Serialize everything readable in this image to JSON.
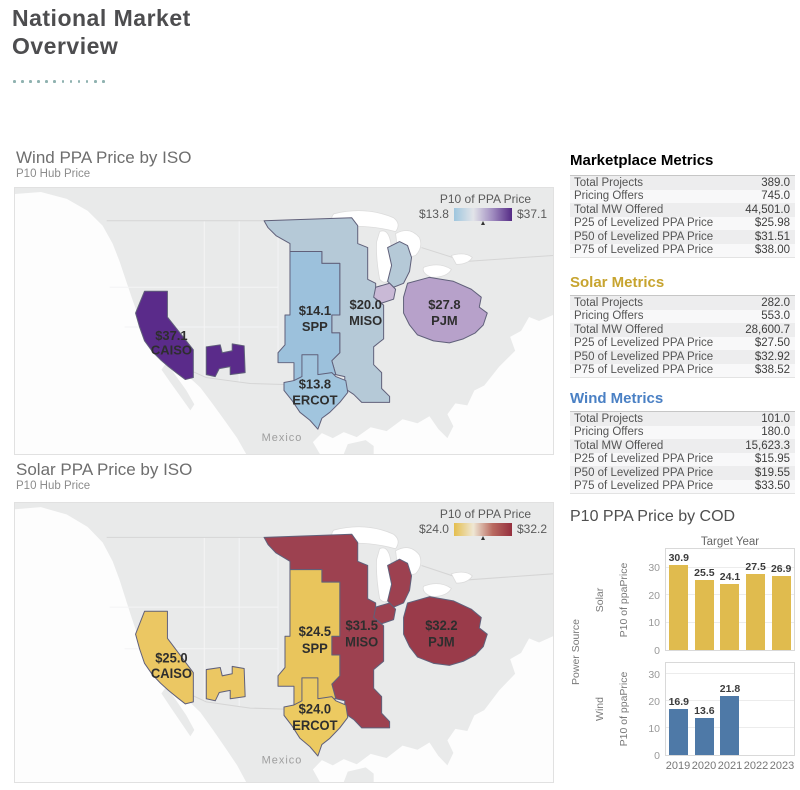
{
  "header": {
    "title_line1": "National Market",
    "title_line2": "Overview"
  },
  "maps": {
    "wind": {
      "title": "Wind PPA Price by ISO",
      "subtitle": "P10 Hub Price",
      "legend": {
        "title": "P10 of PPA Price",
        "min": "$13.8",
        "max": "$37.1",
        "gradient": [
          "#9ec6de",
          "#e2e4e9",
          "#a08cc0",
          "#542a85"
        ]
      },
      "mexico_label": "Mexico",
      "regions": {
        "caiso": {
          "price": "$37.1",
          "name": "CAISO",
          "color": "#5a2b8a"
        },
        "spp": {
          "price": "$14.1",
          "name": "SPP",
          "color": "#9cc1dc"
        },
        "ercot": {
          "price": "$13.8",
          "name": "ERCOT",
          "color": "#a1c5de"
        },
        "miso": {
          "price": "$20.0",
          "name": "MISO",
          "color": "#b5c9d7"
        },
        "pjm": {
          "price": "$27.8",
          "name": "PJM",
          "color": "#b7a1ca"
        },
        "comed": {
          "color": "#c9b9d6"
        }
      }
    },
    "solar": {
      "title": "Solar PPA Price by ISO",
      "subtitle": "P10 Hub Price",
      "legend": {
        "title": "P10 of PPA Price",
        "min": "$24.0",
        "max": "$32.2",
        "gradient": [
          "#e4be4d",
          "#efe7d4",
          "#b96a60",
          "#952f3e"
        ]
      },
      "mexico_label": "Mexico",
      "regions": {
        "caiso": {
          "price": "$25.0",
          "name": "CAISO",
          "color": "#ebc763"
        },
        "spp": {
          "price": "$24.5",
          "name": "SPP",
          "color": "#e9c55c"
        },
        "ercot": {
          "price": "$24.0",
          "name": "ERCOT",
          "color": "#ecca61"
        },
        "miso": {
          "price": "$31.5",
          "name": "MISO",
          "color": "#9d4150"
        },
        "pjm": {
          "price": "$32.2",
          "name": "PJM",
          "color": "#9a3b4a"
        },
        "comed": {
          "color": "#9d4150"
        }
      }
    }
  },
  "metrics": {
    "marketplace": {
      "title": "Marketplace Metrics",
      "title_color": "#3d3d3d",
      "rows": [
        {
          "label": "Total Projects",
          "value": "389.0"
        },
        {
          "label": "Pricing Offers",
          "value": "745.0"
        },
        {
          "label": "Total MW Offered",
          "value": "44,501.0"
        },
        {
          "label": "P25 of Levelized PPA Price",
          "value": "$25.98"
        },
        {
          "label": "P50 of Levelized PPA Price",
          "value": "$31.51"
        },
        {
          "label": "P75 of Levelized PPA Price",
          "value": "$38.00"
        }
      ]
    },
    "solar": {
      "title": "Solar Metrics",
      "title_color": "#c7a42f",
      "rows": [
        {
          "label": "Total Projects",
          "value": "282.0"
        },
        {
          "label": "Pricing Offers",
          "value": "553.0"
        },
        {
          "label": "Total MW Offered",
          "value": "28,600.7"
        },
        {
          "label": "P25 of Levelized PPA Price",
          "value": "$27.50"
        },
        {
          "label": "P50 of Levelized PPA Price",
          "value": "$32.92"
        },
        {
          "label": "P75 of Levelized PPA Price",
          "value": "$38.52"
        }
      ]
    },
    "wind": {
      "title": "Wind Metrics",
      "title_color": "#4a80c4",
      "rows": [
        {
          "label": "Total Projects",
          "value": "101.0"
        },
        {
          "label": "Pricing Offers",
          "value": "180.0"
        },
        {
          "label": "Total MW Offered",
          "value": "15,623.3"
        },
        {
          "label": "P25 of Levelized PPA Price",
          "value": "$15.95"
        },
        {
          "label": "P50 of Levelized PPA Price",
          "value": "$19.55"
        },
        {
          "label": "P75 of Levelized PPA Price",
          "value": "$33.50"
        }
      ]
    }
  },
  "cod_chart": {
    "title": "P10 PPA Price by COD",
    "col_facet_label": "Target Year",
    "row_facet_label": "Power Source",
    "solar_label": "Solar",
    "wind_label": "Wind",
    "y_axis_label": "P10 of ppaPrice",
    "yticks": [
      "30",
      "20",
      "10",
      "0"
    ]
  },
  "chart_data": [
    {
      "type": "heatmap",
      "subtype": "choropleth-map",
      "title": "Wind PPA Price by ISO",
      "subtitle": "P10 Hub Price",
      "legend_title": "P10 of PPA Price",
      "scale_min": 13.8,
      "scale_max": 37.1,
      "regions": [
        {
          "iso": "CAISO",
          "value": 37.1
        },
        {
          "iso": "SPP",
          "value": 14.1
        },
        {
          "iso": "ERCOT",
          "value": 13.8
        },
        {
          "iso": "MISO",
          "value": 20.0
        },
        {
          "iso": "PJM",
          "value": 27.8
        }
      ]
    },
    {
      "type": "heatmap",
      "subtype": "choropleth-map",
      "title": "Solar PPA Price by ISO",
      "subtitle": "P10 Hub Price",
      "legend_title": "P10 of PPA Price",
      "scale_min": 24.0,
      "scale_max": 32.2,
      "regions": [
        {
          "iso": "CAISO",
          "value": 25.0
        },
        {
          "iso": "SPP",
          "value": 24.5
        },
        {
          "iso": "ERCOT",
          "value": 24.0
        },
        {
          "iso": "MISO",
          "value": 31.5
        },
        {
          "iso": "PJM",
          "value": 32.2
        }
      ]
    },
    {
      "type": "table",
      "title": "Marketplace Metrics",
      "rows": [
        [
          "Total Projects",
          "389.0"
        ],
        [
          "Pricing Offers",
          "745.0"
        ],
        [
          "Total MW Offered",
          "44,501.0"
        ],
        [
          "P25 of Levelized PPA Price",
          "$25.98"
        ],
        [
          "P50 of Levelized PPA Price",
          "$31.51"
        ],
        [
          "P75 of Levelized PPA Price",
          "$38.00"
        ]
      ]
    },
    {
      "type": "table",
      "title": "Solar Metrics",
      "rows": [
        [
          "Total Projects",
          "282.0"
        ],
        [
          "Pricing Offers",
          "553.0"
        ],
        [
          "Total MW Offered",
          "28,600.7"
        ],
        [
          "P25 of Levelized PPA Price",
          "$27.50"
        ],
        [
          "P50 of Levelized PPA Price",
          "$32.92"
        ],
        [
          "P75 of Levelized PPA Price",
          "$38.52"
        ]
      ]
    },
    {
      "type": "table",
      "title": "Wind Metrics",
      "rows": [
        [
          "Total Projects",
          "101.0"
        ],
        [
          "Pricing Offers",
          "180.0"
        ],
        [
          "Total MW Offered",
          "15,623.3"
        ],
        [
          "P25 of Levelized PPA Price",
          "$15.95"
        ],
        [
          "P50 of Levelized PPA Price",
          "$19.55"
        ],
        [
          "P75 of Levelized PPA Price",
          "$33.50"
        ]
      ]
    },
    {
      "type": "bar",
      "title": "P10 PPA Price by COD",
      "xlabel": "Target Year",
      "ylabel": "P10 of ppaPrice",
      "row_facet": "Power Source",
      "ylim": [
        0,
        35
      ],
      "grid": true,
      "legend_position": "none",
      "categories": [
        "2019",
        "2020",
        "2021",
        "2022",
        "2023"
      ],
      "series": [
        {
          "name": "Solar",
          "color": "#e0bb4e",
          "values": [
            30.9,
            25.5,
            24.1,
            27.5,
            26.9
          ]
        },
        {
          "name": "Wind",
          "color": "#4e79a7",
          "values": [
            16.9,
            13.6,
            21.8,
            null,
            null
          ]
        }
      ]
    }
  ]
}
